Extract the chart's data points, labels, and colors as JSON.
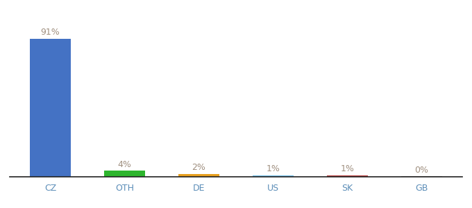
{
  "categories": [
    "CZ",
    "OTH",
    "DE",
    "US",
    "SK",
    "GB"
  ],
  "values": [
    91,
    4,
    2,
    1,
    1,
    0.3
  ],
  "labels": [
    "91%",
    "4%",
    "2%",
    "1%",
    "1%",
    "0%"
  ],
  "bar_colors": [
    "#4472c4",
    "#2db52d",
    "#e8a020",
    "#74c0e8",
    "#b94040",
    "#aaaaaa"
  ],
  "background_color": "#ffffff",
  "label_color": "#a09080",
  "label_fontsize": 9,
  "tick_fontsize": 9,
  "tick_color": "#5b8db8",
  "ylim": [
    0,
    100
  ],
  "bar_width": 0.55
}
